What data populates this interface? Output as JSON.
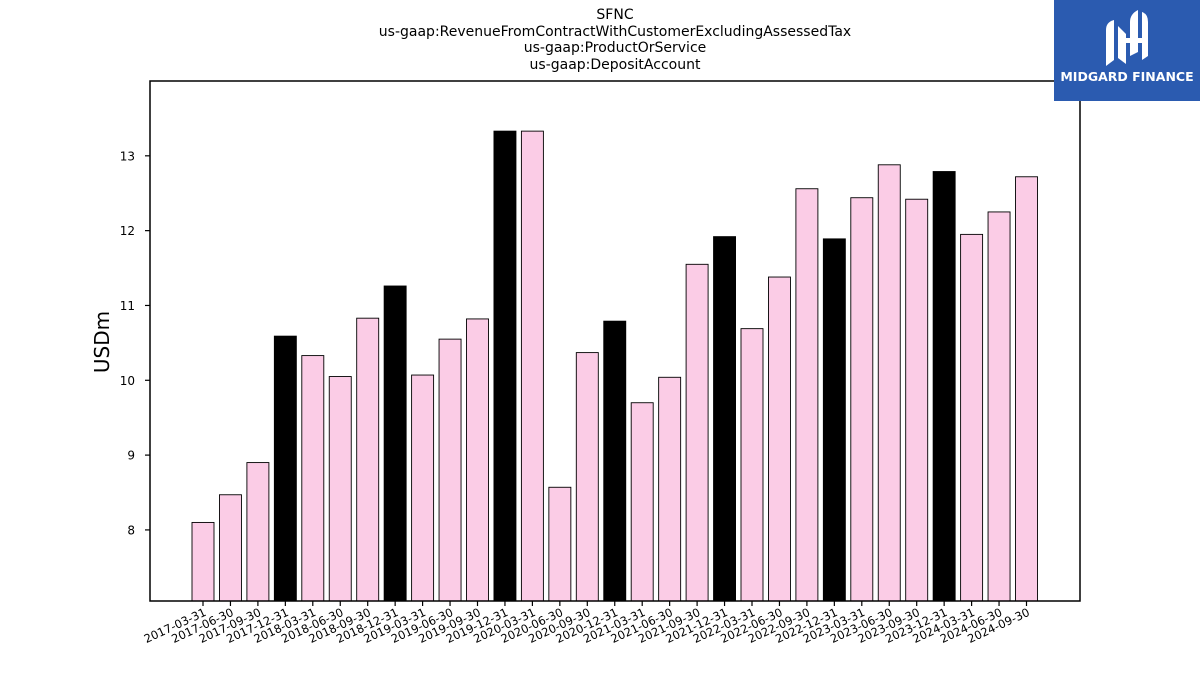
{
  "chart_data": {
    "type": "bar",
    "title_lines": [
      "SFNC",
      "us-gaap:RevenueFromContractWithCustomerExcludingAssessedTax",
      "us-gaap:ProductOrService",
      "us-gaap:DepositAccount"
    ],
    "ylabel": "USDm",
    "xlabel": "",
    "ylim": [
      7.05,
      14.0
    ],
    "yticks": [
      8,
      9,
      10,
      11,
      12,
      13
    ],
    "categories": [
      "2017-03-31",
      "2017-06-30",
      "2017-09-30",
      "2017-12-31",
      "2018-03-31",
      "2018-06-30",
      "2018-09-30",
      "2018-12-31",
      "2019-03-31",
      "2019-06-30",
      "2019-09-30",
      "2019-12-31",
      "2020-03-31",
      "2020-06-30",
      "2020-09-30",
      "2020-12-31",
      "2021-03-31",
      "2021-06-30",
      "2021-09-30",
      "2021-12-31",
      "2022-03-31",
      "2022-06-30",
      "2022-09-30",
      "2022-12-31",
      "2023-03-31",
      "2023-06-30",
      "2023-09-30",
      "2023-12-31",
      "2024-03-31",
      "2024-06-30",
      "2024-09-30"
    ],
    "values": [
      8.1,
      8.47,
      8.9,
      10.59,
      10.33,
      10.05,
      10.83,
      11.26,
      10.07,
      10.55,
      10.82,
      13.33,
      13.33,
      8.57,
      10.37,
      10.79,
      9.7,
      10.04,
      11.55,
      11.92,
      10.69,
      11.38,
      12.56,
      11.89,
      12.44,
      12.88,
      12.42,
      12.79,
      11.95,
      12.25,
      12.72
    ],
    "highlight": [
      false,
      false,
      false,
      true,
      false,
      false,
      false,
      true,
      false,
      false,
      false,
      true,
      false,
      false,
      false,
      true,
      false,
      false,
      false,
      true,
      false,
      false,
      false,
      true,
      false,
      false,
      false,
      true,
      false,
      false,
      false
    ],
    "colors": {
      "normal": "#fbcce6",
      "highlight": "#000000",
      "edge": "#000000"
    },
    "grid": false,
    "legend": "none"
  },
  "logo": {
    "text": "MIDGARD FINANCE",
    "background": "#2b5bb0"
  }
}
